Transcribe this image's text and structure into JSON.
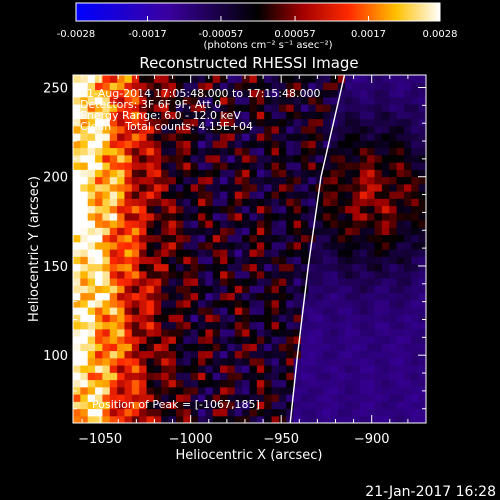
{
  "colorbar": {
    "ticks": [
      "-0.0028",
      "-0.0017",
      "-0.00057",
      "0.00057",
      "0.0017",
      "0.0028"
    ],
    "unit_label": "(photons cm⁻² s⁻¹ asec⁻²)",
    "range": [
      -0.0028,
      0.0028
    ]
  },
  "chart_data": {
    "type": "heatmap",
    "title": "Reconstructed RHESSI Image",
    "xlabel": "Heliocentric X (arcsec)",
    "ylabel": "Heliocentric Y (arcsec)",
    "xlim": [
      -1065,
      -870
    ],
    "ylim": [
      62,
      257
    ],
    "x_ticks": [
      -1050,
      -1000,
      -950,
      -900
    ],
    "y_ticks": [
      100,
      150,
      200,
      250
    ],
    "x_tick_labels": [
      "−1050",
      "−1000",
      "−950",
      "−900"
    ],
    "y_tick_labels": [
      "100",
      "150",
      "200",
      "250"
    ],
    "annotations": [
      "21-Aug-2014 17:05:48.000 to 17:15:48.000",
      "Detectors: 3F 6F 9F, Att 0",
      "Energy Range: 6.0 - 12.0 keV",
      "Clean    Total counts: 4.15E+04"
    ],
    "peak_label": "Position of Peak = [-1067,185]",
    "peak_position": [
      -1067,
      185
    ],
    "limb_points": [
      [
        -945,
        62
      ],
      [
        -941,
        100
      ],
      [
        -935,
        150
      ],
      [
        -928,
        200
      ],
      [
        -915,
        257
      ]
    ],
    "colormap": "blue-black-red-yellow-white"
  },
  "footer": {
    "date": "21-Jan-2017 16:28"
  }
}
